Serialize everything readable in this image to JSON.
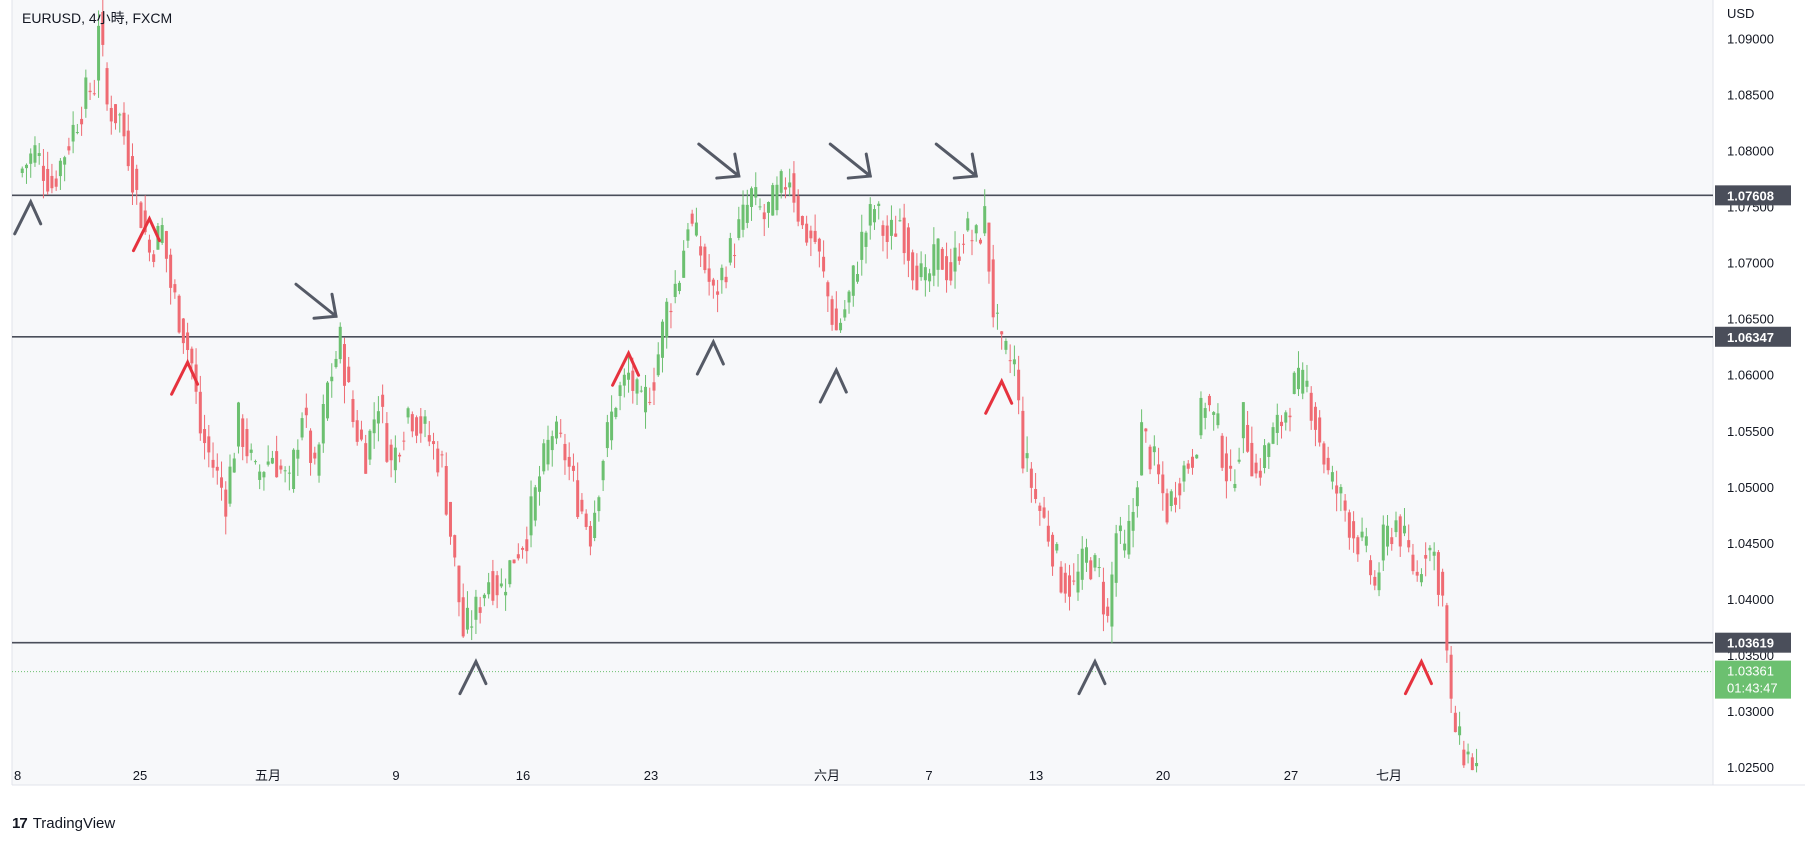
{
  "header": {
    "symbol_title": "EURUSD, 4小時, FXCM"
  },
  "footer": {
    "brand": "TradingView",
    "logo_icon": "tradingview-logo-icon"
  },
  "axis": {
    "currency_label": "USD"
  },
  "countdown": "01:43:47",
  "colors": {
    "up": "#6cc070",
    "down": "#ef6b73",
    "level_line": "#4a4e5a",
    "arrow_dark": "#555a66",
    "arrow_red": "#e6323e",
    "current_price_bg": "#6cc070"
  },
  "chart_data": {
    "type": "candlestick",
    "title": "EURUSD, 4小時, FXCM",
    "ylabel": "USD",
    "ylim": [
      1.0235,
      1.0935
    ],
    "y_ticks": [
      "1.09000",
      "1.08500",
      "1.08000",
      "1.07500",
      "1.07000",
      "1.06500",
      "1.06000",
      "1.05500",
      "1.05000",
      "1.04500",
      "1.04000",
      "1.03500",
      "1.03000",
      "1.02500"
    ],
    "x_ticks": [
      "8",
      "25",
      "五月",
      "9",
      "16",
      "23",
      "六月",
      "7",
      "13",
      "20",
      "27",
      "七月"
    ],
    "horizontal_levels": [
      {
        "value": 1.07608,
        "label": "1.07608"
      },
      {
        "value": 1.06347,
        "label": "1.06347"
      },
      {
        "value": 1.03619,
        "label": "1.03619"
      }
    ],
    "current_price": {
      "value": 1.03361,
      "label": "1.03361"
    },
    "price_path": [
      [
        0,
        1.078
      ],
      [
        4,
        1.08
      ],
      [
        8,
        1.077
      ],
      [
        12,
        1.081
      ],
      [
        16,
        1.085
      ],
      [
        18,
        1.086
      ],
      [
        19,
        1.092
      ],
      [
        21,
        1.084
      ],
      [
        24,
        1.083
      ],
      [
        26,
        1.08
      ],
      [
        28,
        1.076
      ],
      [
        31,
        1.071
      ],
      [
        34,
        1.073
      ],
      [
        36,
        1.068
      ],
      [
        39,
        1.064
      ],
      [
        41,
        1.061
      ],
      [
        43,
        1.055
      ],
      [
        46,
        1.052
      ],
      [
        49,
        1.049
      ],
      [
        52,
        1.056
      ],
      [
        56,
        1.051
      ],
      [
        60,
        1.053
      ],
      [
        64,
        1.05
      ],
      [
        67,
        1.057
      ],
      [
        70,
        1.051
      ],
      [
        73,
        1.059
      ],
      [
        76,
        1.063
      ],
      [
        79,
        1.056
      ],
      [
        82,
        1.053
      ],
      [
        85,
        1.058
      ],
      [
        88,
        1.052
      ],
      [
        92,
        1.057
      ],
      [
        96,
        1.055
      ],
      [
        100,
        1.052
      ],
      [
        103,
        1.043
      ],
      [
        105,
        1.037
      ],
      [
        108,
        1.039
      ],
      [
        111,
        1.042
      ],
      [
        114,
        1.041
      ],
      [
        117,
        1.044
      ],
      [
        120,
        1.046
      ],
      [
        123,
        1.051
      ],
      [
        126,
        1.055
      ],
      [
        129,
        1.053
      ],
      [
        132,
        1.049
      ],
      [
        135,
        1.046
      ],
      [
        138,
        1.053
      ],
      [
        141,
        1.058
      ],
      [
        144,
        1.06
      ],
      [
        147,
        1.057
      ],
      [
        150,
        1.06
      ],
      [
        153,
        1.066
      ],
      [
        156,
        1.069
      ],
      [
        158,
        1.074
      ],
      [
        161,
        1.071
      ],
      [
        164,
        1.067
      ],
      [
        167,
        1.07
      ],
      [
        170,
        1.073
      ],
      [
        173,
        1.076
      ],
      [
        176,
        1.074
      ],
      [
        179,
        1.076
      ],
      [
        182,
        1.078
      ],
      [
        185,
        1.073
      ],
      [
        188,
        1.072
      ],
      [
        191,
        1.067
      ],
      [
        193,
        1.064
      ],
      [
        196,
        1.067
      ],
      [
        199,
        1.072
      ],
      [
        202,
        1.075
      ],
      [
        205,
        1.072
      ],
      [
        208,
        1.074
      ],
      [
        211,
        1.07
      ],
      [
        214,
        1.068
      ],
      [
        217,
        1.071
      ],
      [
        220,
        1.069
      ],
      [
        223,
        1.073
      ],
      [
        226,
        1.072
      ],
      [
        228,
        1.074
      ],
      [
        230,
        1.066
      ],
      [
        232,
        1.062
      ],
      [
        235,
        1.061
      ],
      [
        237,
        1.053
      ],
      [
        240,
        1.049
      ],
      [
        243,
        1.046
      ],
      [
        246,
        1.042
      ],
      [
        249,
        1.041
      ],
      [
        252,
        1.044
      ],
      [
        255,
        1.042
      ],
      [
        257,
        1.038
      ],
      [
        259,
        1.046
      ],
      [
        261,
        1.044
      ],
      [
        263,
        1.048
      ],
      [
        265,
        1.055
      ],
      [
        268,
        1.052
      ],
      [
        271,
        1.048
      ],
      [
        274,
        1.051
      ],
      [
        277,
        1.053
      ],
      [
        280,
        1.058
      ],
      [
        283,
        1.055
      ],
      [
        286,
        1.05
      ],
      [
        289,
        1.056
      ],
      [
        292,
        1.051
      ],
      [
        295,
        1.054
      ],
      [
        298,
        1.056
      ],
      [
        301,
        1.059
      ],
      [
        304,
        1.059
      ],
      [
        306,
        1.056
      ],
      [
        309,
        1.051
      ],
      [
        312,
        1.049
      ],
      [
        315,
        1.046
      ],
      [
        318,
        1.044
      ],
      [
        320,
        1.041
      ],
      [
        322,
        1.045
      ],
      [
        325,
        1.047
      ],
      [
        328,
        1.044
      ],
      [
        330,
        1.042
      ],
      [
        332,
        1.045
      ],
      [
        334,
        1.044
      ],
      [
        336,
        1.04
      ],
      [
        338,
        1.03
      ],
      [
        340,
        1.027
      ],
      [
        342,
        1.026
      ],
      [
        344,
        1.025
      ]
    ],
    "annotations": [
      {
        "type": "arrow",
        "direction": "up",
        "color": "dark",
        "at": [
          3,
          1.0755
        ]
      },
      {
        "type": "arrow",
        "direction": "up",
        "color": "red",
        "at": [
          31,
          1.074
        ]
      },
      {
        "type": "arrow",
        "direction": "up",
        "color": "red",
        "at": [
          40,
          1.0612
        ]
      },
      {
        "type": "arrow",
        "direction": "down",
        "color": "dark",
        "at": [
          75,
          1.0653
        ]
      },
      {
        "type": "arrow",
        "direction": "up",
        "color": "dark",
        "at": [
          108,
          1.0345
        ]
      },
      {
        "type": "arrow",
        "direction": "up",
        "color": "red",
        "at": [
          144,
          1.062
        ]
      },
      {
        "type": "arrow",
        "direction": "up",
        "color": "dark",
        "at": [
          164,
          1.063
        ]
      },
      {
        "type": "arrow",
        "direction": "down",
        "color": "dark",
        "at": [
          170,
          1.0778
        ]
      },
      {
        "type": "arrow",
        "direction": "down",
        "color": "dark",
        "at": [
          201,
          1.0778
        ]
      },
      {
        "type": "arrow",
        "direction": "up",
        "color": "dark",
        "at": [
          193,
          1.0605
        ]
      },
      {
        "type": "arrow",
        "direction": "down",
        "color": "dark",
        "at": [
          226,
          1.0778
        ]
      },
      {
        "type": "arrow",
        "direction": "up",
        "color": "red",
        "at": [
          232,
          1.0595
        ]
      },
      {
        "type": "arrow",
        "direction": "up",
        "color": "dark",
        "at": [
          254,
          1.0345
        ]
      },
      {
        "type": "arrow",
        "direction": "up",
        "color": "red",
        "at": [
          331,
          1.0345
        ]
      }
    ]
  }
}
